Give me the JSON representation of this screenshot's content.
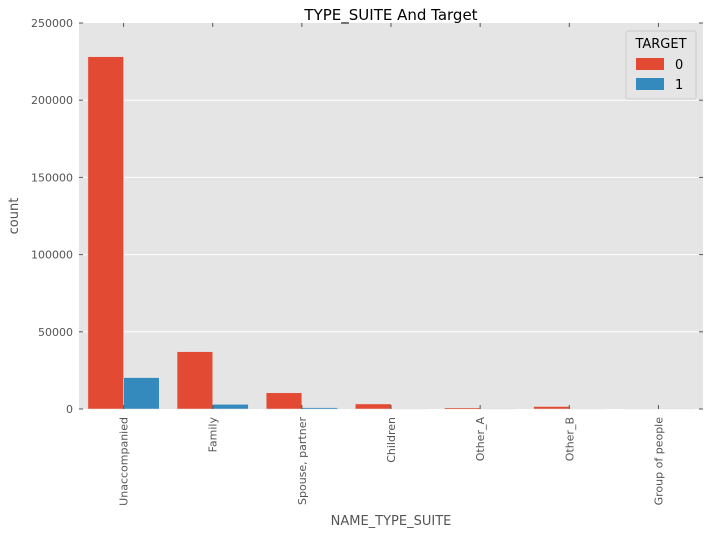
{
  "chart_data": {
    "type": "bar",
    "title": "TYPE_SUITE And Target",
    "xlabel": "NAME_TYPE_SUITE",
    "ylabel": "count",
    "ylim": [
      0,
      250000
    ],
    "yticks": [
      0,
      50000,
      100000,
      150000,
      200000,
      250000
    ],
    "ytick_labels": [
      "0",
      "50000",
      "100000",
      "150000",
      "200000",
      "250000"
    ],
    "grid": true,
    "legend_placement": "top-right",
    "legend_title": "TARGET",
    "categories": [
      "Unaccompanied",
      "Family",
      "Spouse, partner",
      "Children",
      "Other_A",
      "Other_B",
      "Group of people"
    ],
    "series": [
      {
        "name": "0",
        "color": "#E24A33",
        "values": [
          228190,
          37140,
          10480,
          3270,
          800,
          1600,
          250
        ]
      },
      {
        "name": "1",
        "color": "#348ABD",
        "values": [
          20340,
          3010,
          890,
          240,
          70,
          170,
          20
        ]
      }
    ]
  }
}
